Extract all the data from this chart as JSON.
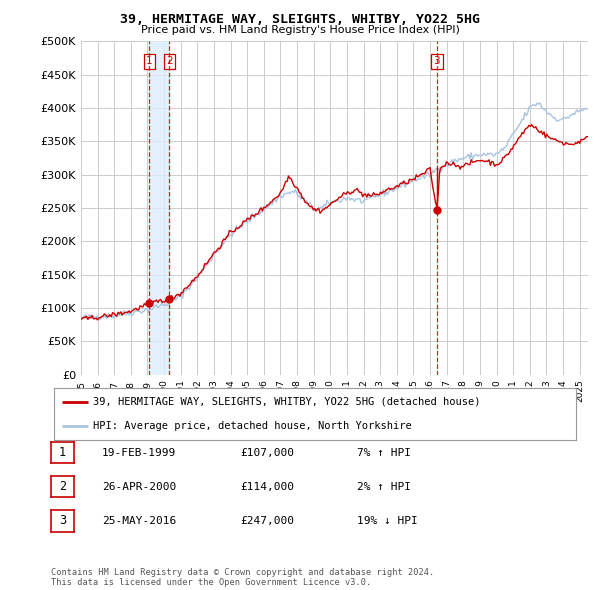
{
  "title": "39, HERMITAGE WAY, SLEIGHTS, WHITBY, YO22 5HG",
  "subtitle": "Price paid vs. HM Land Registry's House Price Index (HPI)",
  "ylim": [
    0,
    500000
  ],
  "yticks": [
    0,
    50000,
    100000,
    150000,
    200000,
    250000,
    300000,
    350000,
    400000,
    450000,
    500000
  ],
  "xlim_start": 1995.0,
  "xlim_end": 2025.5,
  "sale_color": "#cc0000",
  "hpi_color": "#aac4e0",
  "vline_color": "#cc0000",
  "shade_color": "#ddeeff",
  "background_color": "#ffffff",
  "grid_color": "#cccccc",
  "transactions": [
    {
      "num": 1,
      "date_label": "19-FEB-1999",
      "date_x": 1999.12,
      "price": 107000,
      "pct": "7%",
      "dir": "↑"
    },
    {
      "num": 2,
      "date_label": "26-APR-2000",
      "date_x": 2000.32,
      "price": 114000,
      "pct": "2%",
      "dir": "↑"
    },
    {
      "num": 3,
      "date_label": "25-MAY-2016",
      "date_x": 2016.4,
      "price": 247000,
      "pct": "19%",
      "dir": "↓"
    }
  ],
  "legend_sale_label": "39, HERMITAGE WAY, SLEIGHTS, WHITBY, YO22 5HG (detached house)",
  "legend_hpi_label": "HPI: Average price, detached house, North Yorkshire",
  "footnote": "Contains HM Land Registry data © Crown copyright and database right 2024.\nThis data is licensed under the Open Government Licence v3.0."
}
